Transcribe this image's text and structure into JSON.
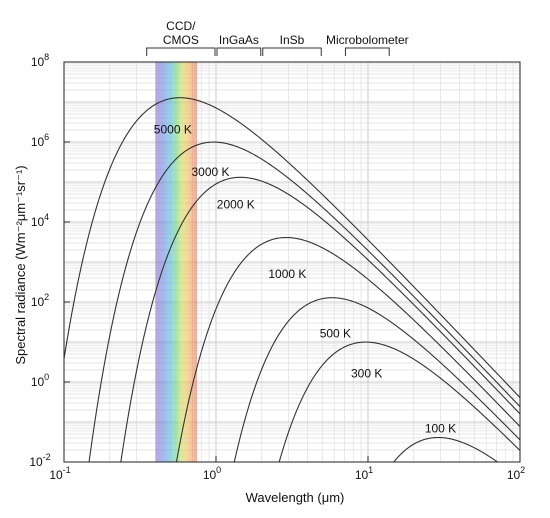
{
  "chart_data": {
    "type": "line",
    "xlabel": "Wavelength (μm)",
    "ylabel": "Spectral radiance (Wm⁻²μm⁻¹sr⁻¹)",
    "xscale": "log",
    "yscale": "log",
    "xlim": [
      0.1,
      100
    ],
    "ylim": [
      0.01,
      100000000
    ],
    "grid": true,
    "x_ticks": [
      {
        "value": 0.1,
        "base": "10",
        "exp": "-1"
      },
      {
        "value": 1,
        "base": "10",
        "exp": "0"
      },
      {
        "value": 10,
        "base": "10",
        "exp": "1"
      },
      {
        "value": 100,
        "base": "10",
        "exp": "2"
      }
    ],
    "y_ticks": [
      {
        "value": 0.01,
        "base": "10",
        "exp": "-2"
      },
      {
        "value": 1,
        "base": "10",
        "exp": "0"
      },
      {
        "value": 100,
        "base": "10",
        "exp": "2"
      },
      {
        "value": 10000,
        "base": "10",
        "exp": "4"
      },
      {
        "value": 1000000,
        "base": "10",
        "exp": "6"
      },
      {
        "value": 100000000,
        "base": "10",
        "exp": "8"
      }
    ],
    "series": [
      {
        "name": "5000 K",
        "temperature_K": 5000,
        "label_at": [
          0.52,
          1650000
        ]
      },
      {
        "name": "3000 K",
        "temperature_K": 3000,
        "label_at": [
          0.92,
          140000
        ]
      },
      {
        "name": "2000 K",
        "temperature_K": 2000,
        "label_at": [
          1.35,
          22000
        ]
      },
      {
        "name": "1000 K",
        "temperature_K": 1000,
        "label_at": [
          2.95,
          400
        ]
      },
      {
        "name": "500 K",
        "temperature_K": 500,
        "label_at": [
          6.1,
          13
        ]
      },
      {
        "name": "300 K",
        "temperature_K": 300,
        "label_at": [
          9.8,
          1.3
        ]
      },
      {
        "name": "100 K",
        "temperature_K": 100,
        "label_at": [
          30,
          0.055
        ]
      }
    ],
    "visible_band": {
      "range_um": [
        0.4,
        0.75
      ]
    },
    "detectors": [
      {
        "name": "CCD/\nCMOS",
        "range_um": [
          0.35,
          1.0
        ]
      },
      {
        "name": "InGaAs",
        "range_um": [
          1.0,
          2.0
        ]
      },
      {
        "name": "InSb",
        "range_um": [
          2.0,
          5.0
        ]
      },
      {
        "name": "Microbolometer",
        "range_um": [
          7.0,
          14.0
        ]
      }
    ]
  }
}
